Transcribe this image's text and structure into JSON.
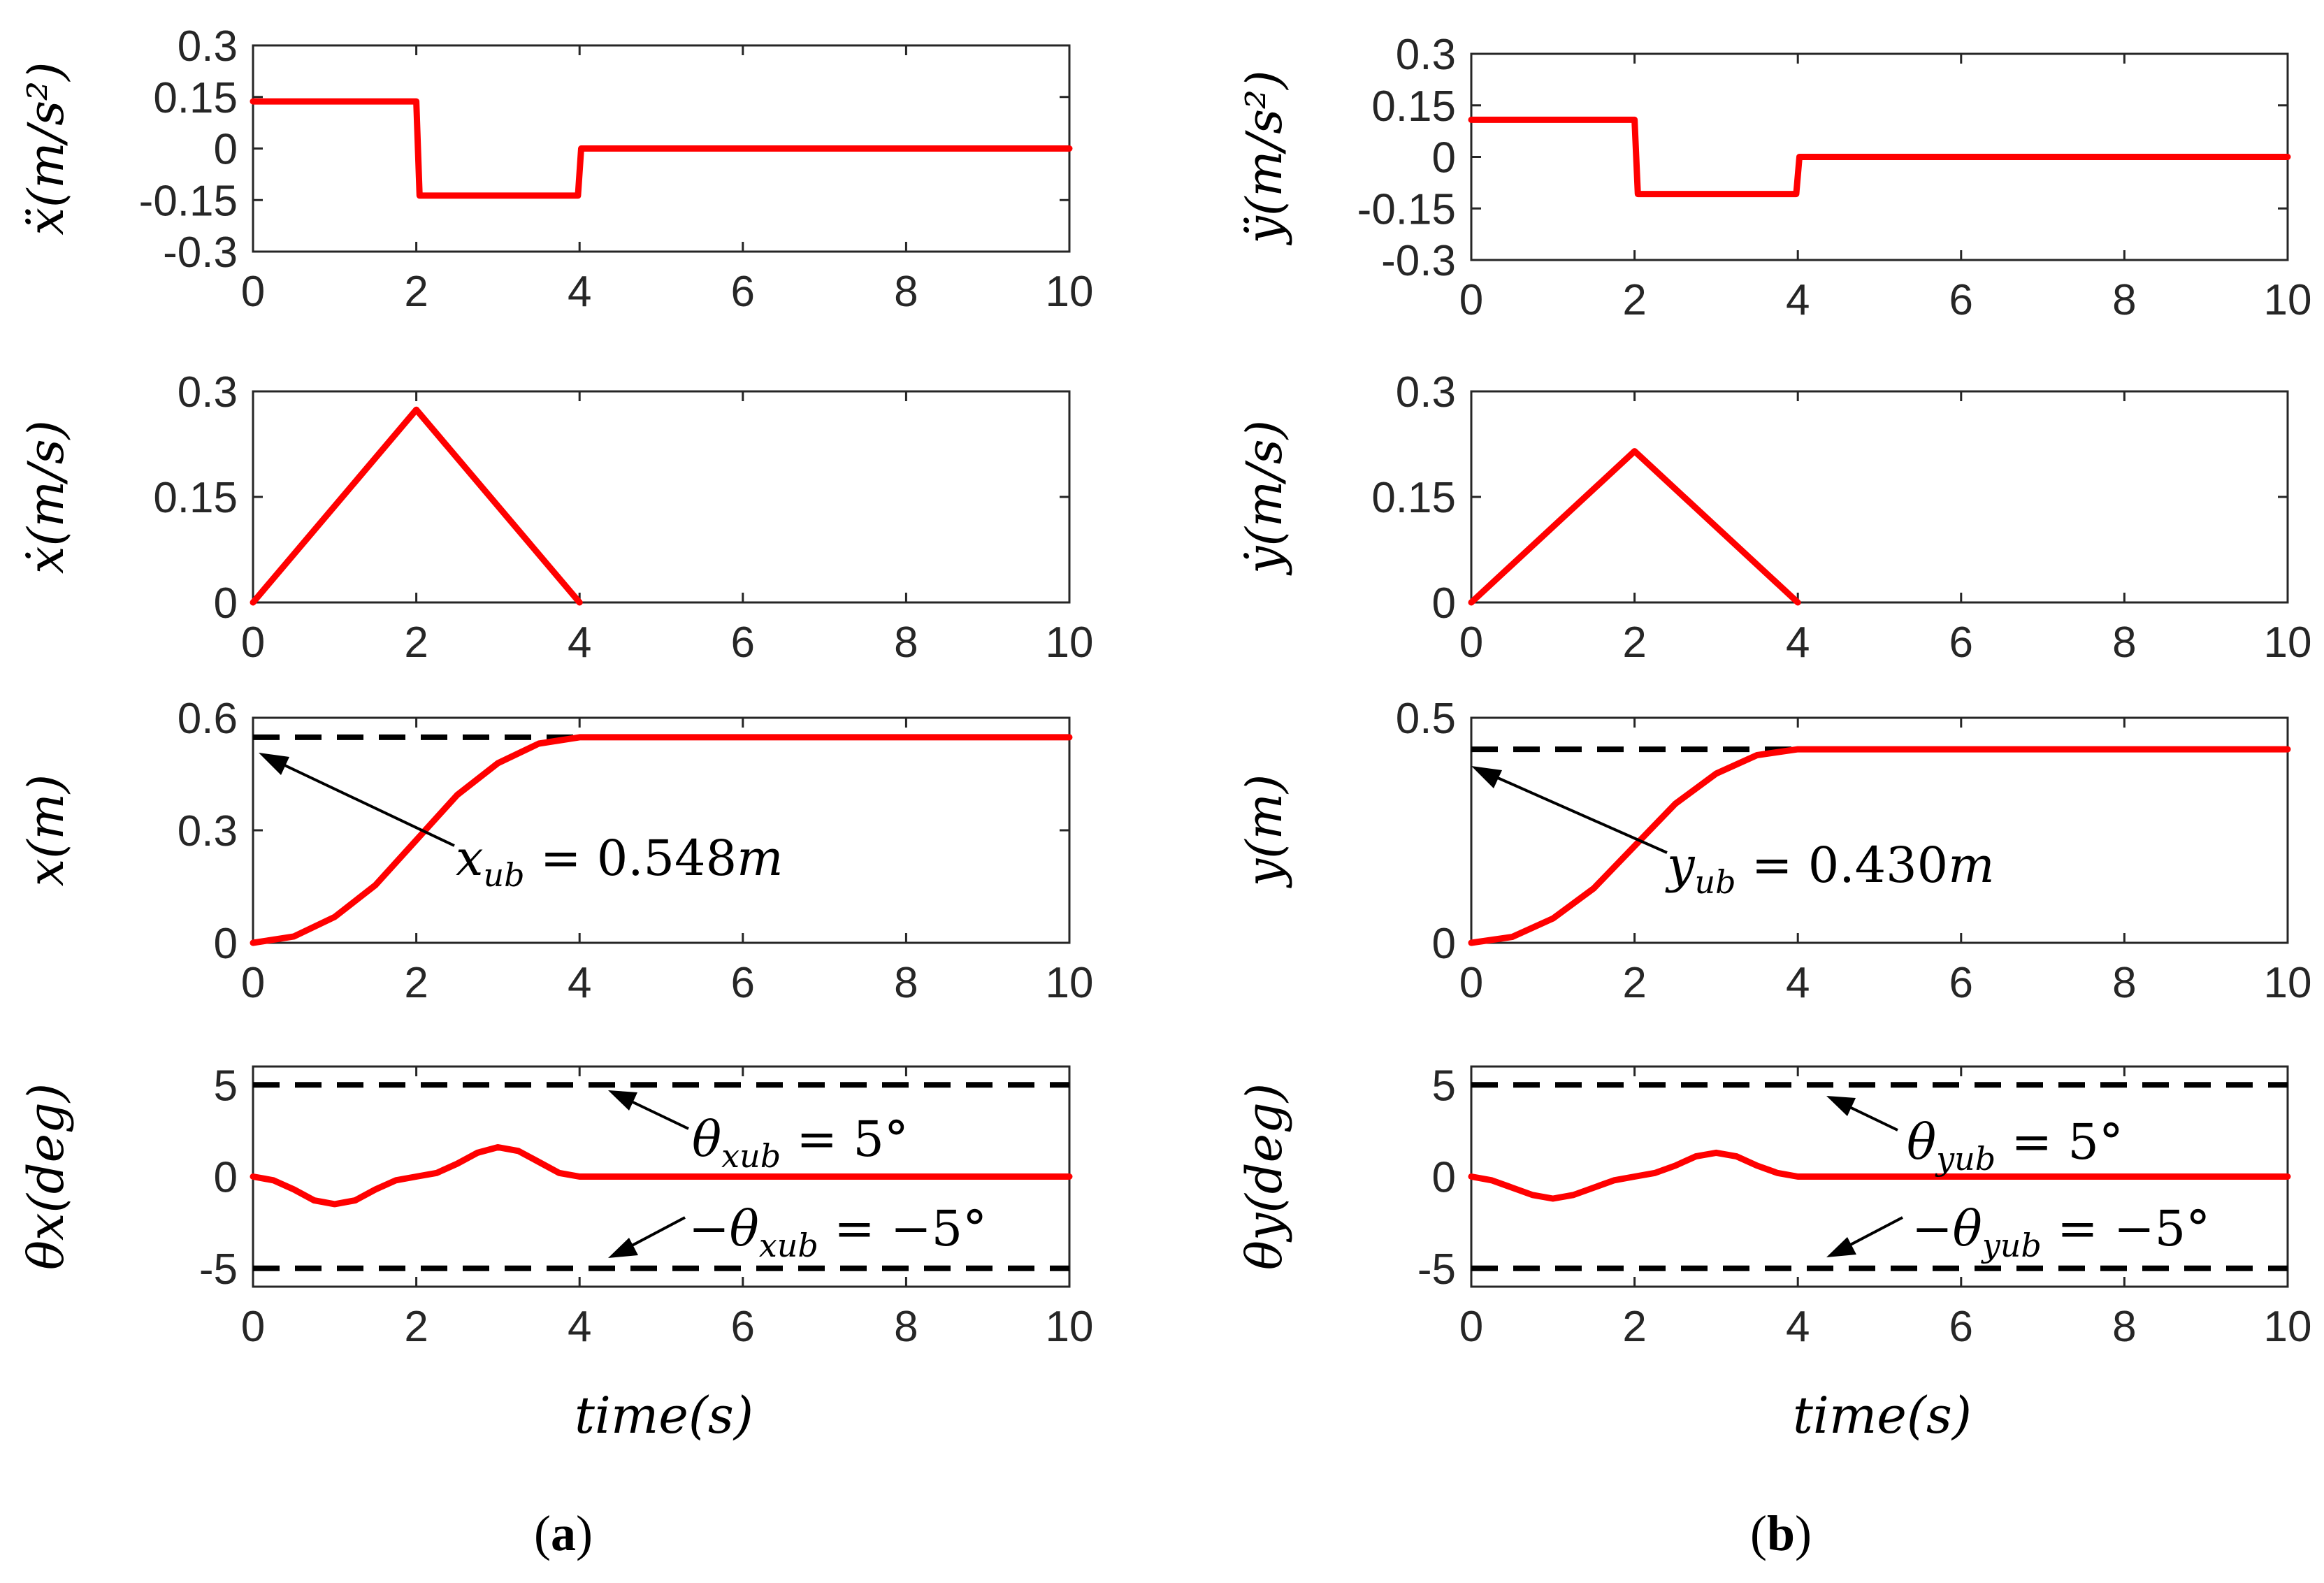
{
  "chart_data": [
    {
      "id": "a_xdd",
      "type": "line",
      "column": "a",
      "ylabel": "ẍ(m/s²)",
      "xlim": [
        0,
        10
      ],
      "ylim": [
        -0.3,
        0.3
      ],
      "xticks": [
        "0",
        "2",
        "4",
        "6",
        "8",
        "10"
      ],
      "yticks": [
        "0.3",
        "0.15",
        "0",
        "-0.15",
        "-0.3"
      ],
      "ytick_values": [
        0.3,
        0.15,
        0,
        -0.15,
        -0.3
      ],
      "series": [
        {
          "name": "ẍ",
          "color": "#ff0000",
          "x": [
            0,
            2,
            2.04,
            3.98,
            4.02,
            10
          ],
          "y": [
            0.137,
            0.137,
            -0.137,
            -0.137,
            0,
            0
          ]
        }
      ],
      "refs": []
    },
    {
      "id": "a_xd",
      "type": "line",
      "column": "a",
      "ylabel": "ẋ(m/s)",
      "xlim": [
        0,
        10
      ],
      "ylim": [
        0,
        0.3
      ],
      "xticks": [
        "0",
        "2",
        "4",
        "6",
        "8",
        "10"
      ],
      "yticks": [
        "0.3",
        "0.15",
        "0"
      ],
      "ytick_values": [
        0.3,
        0.15,
        0
      ],
      "series": [
        {
          "name": "ẋ",
          "color": "#ff0000",
          "x": [
            0,
            2,
            4
          ],
          "y": [
            0,
            0.274,
            0
          ]
        }
      ],
      "refs": []
    },
    {
      "id": "a_x",
      "type": "line",
      "column": "a",
      "ylabel": "x(m)",
      "xlim": [
        0,
        10
      ],
      "ylim": [
        0,
        0.6
      ],
      "xticks": [
        "0",
        "2",
        "4",
        "6",
        "8",
        "10"
      ],
      "yticks": [
        "0.6",
        "0.3",
        "0"
      ],
      "ytick_values": [
        0.6,
        0.3,
        0
      ],
      "series": [
        {
          "name": "x",
          "color": "#ff0000",
          "x": [
            0,
            0.5,
            1,
            1.5,
            2,
            2.5,
            3,
            3.5,
            4,
            10
          ],
          "y": [
            0,
            0.017,
            0.069,
            0.154,
            0.274,
            0.394,
            0.479,
            0.531,
            0.548,
            0.548
          ]
        }
      ],
      "refs": [
        {
          "y": 0.548,
          "style": "dashed"
        }
      ]
    },
    {
      "id": "a_theta",
      "type": "line",
      "column": "a",
      "ylabel": "θx(deg)",
      "xlim": [
        0,
        10
      ],
      "ylim": [
        -6,
        6
      ],
      "xticks": [
        "0",
        "2",
        "4",
        "6",
        "8",
        "10"
      ],
      "yticks": [
        "5",
        "0",
        "-5"
      ],
      "ytick_values": [
        5,
        0,
        -5
      ],
      "series": [
        {
          "name": "θx",
          "color": "#ff0000",
          "x": [
            0,
            0.25,
            0.5,
            0.75,
            1,
            1.25,
            1.5,
            1.75,
            2,
            2.25,
            2.5,
            2.75,
            3,
            3.25,
            3.5,
            3.75,
            4,
            10
          ],
          "y": [
            0,
            -0.2,
            -0.7,
            -1.3,
            -1.5,
            -1.3,
            -0.7,
            -0.2,
            0,
            0.2,
            0.7,
            1.3,
            1.6,
            1.4,
            0.8,
            0.2,
            0,
            0
          ]
        }
      ],
      "refs": [
        {
          "y": 5,
          "style": "dashed"
        },
        {
          "y": -5,
          "style": "dashed"
        }
      ]
    },
    {
      "id": "b_ydd",
      "type": "line",
      "column": "b",
      "ylabel": "ÿ(m/s²)",
      "xlim": [
        0,
        10
      ],
      "ylim": [
        -0.3,
        0.3
      ],
      "xticks": [
        "0",
        "2",
        "4",
        "6",
        "8",
        "10"
      ],
      "yticks": [
        "0.3",
        "0.15",
        "0",
        "-0.15",
        "-0.3"
      ],
      "ytick_values": [
        0.3,
        0.15,
        0,
        -0.15,
        -0.3
      ],
      "series": [
        {
          "name": "ÿ",
          "color": "#ff0000",
          "x": [
            0,
            2,
            2.04,
            3.98,
            4.02,
            10
          ],
          "y": [
            0.108,
            0.108,
            -0.108,
            -0.108,
            0,
            0
          ]
        }
      ],
      "refs": []
    },
    {
      "id": "b_yd",
      "type": "line",
      "column": "b",
      "ylabel": "ẏ(m/s)",
      "xlim": [
        0,
        10
      ],
      "ylim": [
        0,
        0.3
      ],
      "xticks": [
        "0",
        "2",
        "4",
        "6",
        "8",
        "10"
      ],
      "yticks": [
        "0.3",
        "0.15",
        "0"
      ],
      "ytick_values": [
        0.3,
        0.15,
        0
      ],
      "series": [
        {
          "name": "ẏ",
          "color": "#ff0000",
          "x": [
            0,
            2,
            4
          ],
          "y": [
            0,
            0.215,
            0
          ]
        }
      ],
      "refs": []
    },
    {
      "id": "b_y",
      "type": "line",
      "column": "b",
      "ylabel": "y(m)",
      "xlim": [
        0,
        10
      ],
      "ylim": [
        0,
        0.5
      ],
      "xticks": [
        "0",
        "2",
        "4",
        "6",
        "8",
        "10"
      ],
      "yticks": [
        "0.5",
        "0"
      ],
      "ytick_values": [
        0.5,
        0
      ],
      "series": [
        {
          "name": "y",
          "color": "#ff0000",
          "x": [
            0,
            0.5,
            1,
            1.5,
            2,
            2.5,
            3,
            3.5,
            4,
            10
          ],
          "y": [
            0,
            0.013,
            0.054,
            0.121,
            0.215,
            0.309,
            0.376,
            0.417,
            0.43,
            0.43
          ]
        }
      ],
      "refs": [
        {
          "y": 0.43,
          "style": "dashed"
        }
      ]
    },
    {
      "id": "b_theta",
      "type": "line",
      "column": "b",
      "ylabel": "θy(deg)",
      "xlim": [
        0,
        10
      ],
      "ylim": [
        -6,
        6
      ],
      "xticks": [
        "0",
        "2",
        "4",
        "6",
        "8",
        "10"
      ],
      "yticks": [
        "5",
        "0",
        "-5"
      ],
      "ytick_values": [
        5,
        0,
        -5
      ],
      "series": [
        {
          "name": "θy",
          "color": "#ff0000",
          "x": [
            0,
            0.25,
            0.5,
            0.75,
            1,
            1.25,
            1.5,
            1.75,
            2,
            2.25,
            2.5,
            2.75,
            3,
            3.25,
            3.5,
            3.75,
            4,
            10
          ],
          "y": [
            0,
            -0.2,
            -0.6,
            -1.0,
            -1.2,
            -1.0,
            -0.6,
            -0.2,
            0,
            0.2,
            0.6,
            1.1,
            1.3,
            1.1,
            0.6,
            0.2,
            0,
            0
          ]
        }
      ],
      "refs": [
        {
          "y": 5,
          "style": "dashed"
        },
        {
          "y": -5,
          "style": "dashed"
        }
      ]
    }
  ],
  "annotations": {
    "a_x": {
      "sym": "x",
      "sub": "ub",
      "eq": " = 0.548",
      "unit": "m"
    },
    "a_theta_pos": {
      "sym": "θ",
      "sub": "xub",
      "eq": " = 5°"
    },
    "a_theta_neg": {
      "pre": "−",
      "sym": "θ",
      "sub": "xub",
      "eq": " = −5°"
    },
    "b_y": {
      "sym": "y",
      "sub": "ub",
      "eq": " = 0.430",
      "unit": "m"
    },
    "b_theta_pos": {
      "sym": "θ",
      "sub": "yub",
      "eq": " = 5°"
    },
    "b_theta_neg": {
      "pre": "−",
      "sym": "θ",
      "sub": "yub",
      "eq": " = −5°"
    }
  },
  "xlabel": "time(s)",
  "subfigure_labels": {
    "a": "a",
    "b": "b"
  },
  "colors": {
    "line": "#ff0000",
    "ref": "#000000",
    "axis": "#262626"
  }
}
